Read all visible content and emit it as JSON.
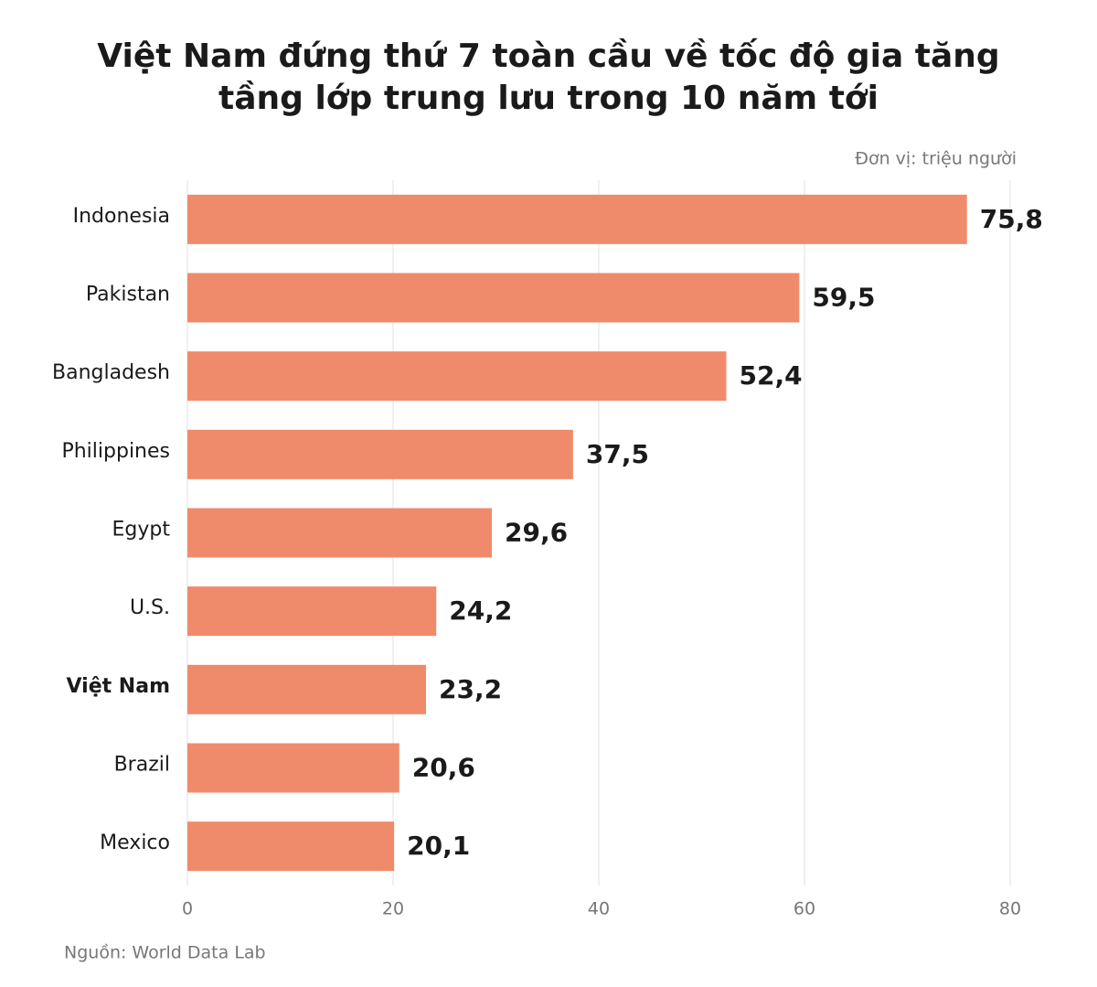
{
  "chart_data": {
    "type": "bar",
    "orientation": "horizontal",
    "title": [
      "Việt Nam đứng thứ 7 toàn cầu về tốc độ gia tăng",
      "tầng lớp trung lưu trong 10 năm tới"
    ],
    "unit": "Đơn vị: triệu người",
    "source": "Nguồn: World Data Lab",
    "categories": [
      "Indonesia",
      "Pakistan",
      "Bangladesh",
      "Philippines",
      "Egypt",
      "U.S.",
      "Việt Nam",
      "Brazil",
      "Mexico"
    ],
    "values": [
      75.8,
      59.5,
      52.4,
      37.5,
      29.6,
      24.2,
      23.2,
      20.6,
      20.1
    ],
    "value_labels": [
      "75,8",
      "59,5",
      "52,4",
      "37,5",
      "29,6",
      "24,2",
      "23,2",
      "20,6",
      "20,1"
    ],
    "highlight": 6,
    "color": "#ef8b6b",
    "xlim": [
      0,
      80
    ],
    "xticks": [
      0,
      20,
      40,
      60,
      80
    ],
    "grid": true
  }
}
